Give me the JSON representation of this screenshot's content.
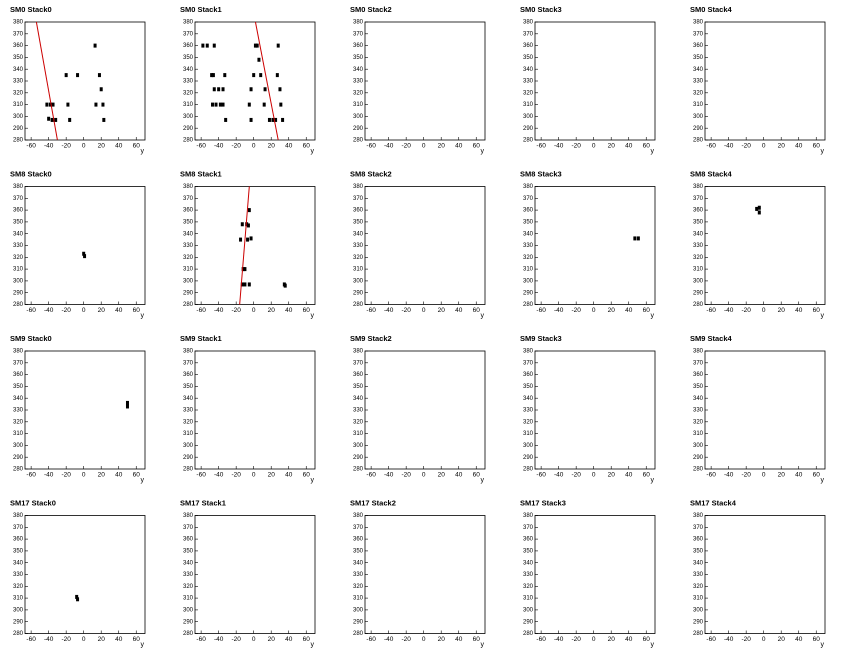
{
  "chart_data": [
    {
      "type": "scatter",
      "title": "SM0 Stack0",
      "xlabel": "y",
      "xlim": [
        -67,
        70
      ],
      "ylim": [
        280,
        380
      ],
      "xticks": [
        -60,
        -40,
        -20,
        0,
        20,
        40,
        60
      ],
      "yticks": [
        280,
        290,
        300,
        310,
        320,
        330,
        340,
        350,
        360,
        370,
        380
      ],
      "series": [
        {
          "color": "#000000",
          "x": [
            -42,
            -38,
            -35,
            -40,
            -36,
            -32,
            -20,
            -18,
            -16,
            -7,
            13,
            14,
            18,
            20,
            22,
            23
          ],
          "values": [
            310,
            310,
            310,
            298,
            297,
            297,
            335,
            310,
            297,
            335,
            360,
            310,
            335,
            323,
            310,
            297
          ]
        },
        {
          "type": "line",
          "color": "#cc0000",
          "x": [
            -54,
            -30
          ],
          "values": [
            380,
            280
          ]
        }
      ]
    },
    {
      "type": "scatter",
      "title": "SM0 Stack1",
      "xlabel": "y",
      "xlim": [
        -67,
        70
      ],
      "ylim": [
        280,
        380
      ],
      "xticks": [
        -60,
        -40,
        -20,
        0,
        20,
        40,
        60
      ],
      "yticks": [
        280,
        290,
        300,
        310,
        320,
        330,
        340,
        350,
        360,
        370,
        380
      ],
      "series": [
        {
          "color": "#000000",
          "x": [
            -58,
            -53,
            -45,
            -48,
            -46,
            -45,
            -40,
            -35,
            -47,
            -43,
            -38,
            -35,
            -33,
            -32,
            -5,
            -3,
            -3,
            0,
            2,
            4,
            6,
            8,
            13,
            12,
            18,
            22,
            25,
            28,
            27,
            30,
            31,
            33
          ],
          "values": [
            360,
            360,
            360,
            335,
            335,
            323,
            323,
            323,
            310,
            310,
            310,
            310,
            335,
            297,
            310,
            323,
            297,
            335,
            360,
            360,
            348,
            335,
            323,
            310,
            297,
            297,
            297,
            360,
            335,
            323,
            310,
            297
          ]
        },
        {
          "type": "line",
          "color": "#cc0000",
          "x": [
            2,
            28
          ],
          "values": [
            380,
            280
          ]
        }
      ]
    },
    {
      "type": "scatter",
      "title": "SM0 Stack2",
      "xlabel": "y",
      "xlim": [
        -67,
        70
      ],
      "ylim": [
        280,
        380
      ],
      "xticks": [
        -60,
        -40,
        -20,
        0,
        20,
        40,
        60
      ],
      "yticks": [
        280,
        290,
        300,
        310,
        320,
        330,
        340,
        350,
        360,
        370,
        380
      ]
    },
    {
      "type": "scatter",
      "title": "SM0 Stack3",
      "xlabel": "y",
      "xlim": [
        -67,
        70
      ],
      "ylim": [
        280,
        380
      ],
      "xticks": [
        -60,
        -40,
        -20,
        0,
        20,
        40,
        60
      ],
      "yticks": [
        280,
        290,
        300,
        310,
        320,
        330,
        340,
        350,
        360,
        370,
        380
      ]
    },
    {
      "type": "scatter",
      "title": "SM0 Stack4",
      "xlabel": "y",
      "xlim": [
        -67,
        70
      ],
      "ylim": [
        280,
        380
      ],
      "xticks": [
        -60,
        -40,
        -20,
        0,
        20,
        40,
        60
      ],
      "yticks": [
        280,
        290,
        300,
        310,
        320,
        330,
        340,
        350,
        360,
        370,
        380
      ]
    },
    {
      "type": "scatter",
      "title": "SM8 Stack0",
      "xlabel": "y",
      "xlim": [
        -67,
        70
      ],
      "ylim": [
        280,
        380
      ],
      "xticks": [
        -60,
        -40,
        -20,
        0,
        20,
        40,
        60
      ],
      "yticks": [
        280,
        290,
        300,
        310,
        320,
        330,
        340,
        350,
        360,
        370,
        380
      ],
      "series": [
        {
          "color": "#000000",
          "x": [
            0,
            1
          ],
          "values": [
            323,
            321
          ]
        }
      ]
    },
    {
      "type": "scatter",
      "title": "SM8 Stack1",
      "xlabel": "y",
      "xlim": [
        -67,
        70
      ],
      "ylim": [
        280,
        380
      ],
      "xticks": [
        -60,
        -40,
        -20,
        0,
        20,
        40,
        60
      ],
      "yticks": [
        280,
        290,
        300,
        310,
        320,
        330,
        340,
        350,
        360,
        370,
        380
      ],
      "series": [
        {
          "color": "#000000",
          "x": [
            -13,
            -15,
            -8,
            -6,
            -5,
            -7,
            -3,
            -10,
            -12,
            -13,
            -10,
            -5,
            35,
            36
          ],
          "values": [
            348,
            335,
            348,
            347,
            360,
            335,
            336,
            310,
            310,
            297,
            297,
            297,
            297,
            296
          ]
        },
        {
          "type": "line",
          "color": "#cc0000",
          "x": [
            -5,
            -16
          ],
          "values": [
            380,
            280
          ]
        }
      ]
    },
    {
      "type": "scatter",
      "title": "SM8 Stack2",
      "xlabel": "y",
      "xlim": [
        -67,
        70
      ],
      "ylim": [
        280,
        380
      ],
      "xticks": [
        -60,
        -40,
        -20,
        0,
        20,
        40,
        60
      ],
      "yticks": [
        280,
        290,
        300,
        310,
        320,
        330,
        340,
        350,
        360,
        370,
        380
      ]
    },
    {
      "type": "scatter",
      "title": "SM8 Stack3",
      "xlabel": "y",
      "xlim": [
        -67,
        70
      ],
      "ylim": [
        280,
        380
      ],
      "xticks": [
        -60,
        -40,
        -20,
        0,
        20,
        40,
        60
      ],
      "yticks": [
        280,
        290,
        300,
        310,
        320,
        330,
        340,
        350,
        360,
        370,
        380
      ],
      "series": [
        {
          "color": "#000000",
          "x": [
            47,
            51
          ],
          "values": [
            336,
            336
          ]
        }
      ]
    },
    {
      "type": "scatter",
      "title": "SM8 Stack4",
      "xlabel": "y",
      "xlim": [
        -67,
        70
      ],
      "ylim": [
        280,
        380
      ],
      "xticks": [
        -60,
        -40,
        -20,
        0,
        20,
        40,
        60
      ],
      "yticks": [
        280,
        290,
        300,
        310,
        320,
        330,
        340,
        350,
        360,
        370,
        380
      ],
      "series": [
        {
          "color": "#000000",
          "x": [
            -8,
            -5,
            -5
          ],
          "values": [
            361,
            362,
            358
          ]
        }
      ]
    },
    {
      "type": "scatter",
      "title": "SM9 Stack0",
      "xlabel": "y",
      "xlim": [
        -67,
        70
      ],
      "ylim": [
        280,
        380
      ],
      "xticks": [
        -60,
        -40,
        -20,
        0,
        20,
        40,
        60
      ],
      "yticks": [
        280,
        290,
        300,
        310,
        320,
        330,
        340,
        350,
        360,
        370,
        380
      ],
      "series": [
        {
          "color": "#000000",
          "x": [
            50,
            50
          ],
          "values": [
            336,
            333
          ]
        }
      ]
    },
    {
      "type": "scatter",
      "title": "SM9 Stack1",
      "xlabel": "y",
      "xlim": [
        -67,
        70
      ],
      "ylim": [
        280,
        380
      ],
      "xticks": [
        -60,
        -40,
        -20,
        0,
        20,
        40,
        60
      ],
      "yticks": [
        280,
        290,
        300,
        310,
        320,
        330,
        340,
        350,
        360,
        370,
        380
      ]
    },
    {
      "type": "scatter",
      "title": "SM9 Stack2",
      "xlabel": "y",
      "xlim": [
        -67,
        70
      ],
      "ylim": [
        280,
        380
      ],
      "xticks": [
        -60,
        -40,
        -20,
        0,
        20,
        40,
        60
      ],
      "yticks": [
        280,
        290,
        300,
        310,
        320,
        330,
        340,
        350,
        360,
        370,
        380
      ]
    },
    {
      "type": "scatter",
      "title": "SM9 Stack3",
      "xlabel": "y",
      "xlim": [
        -67,
        70
      ],
      "ylim": [
        280,
        380
      ],
      "xticks": [
        -60,
        -40,
        -20,
        0,
        20,
        40,
        60
      ],
      "yticks": [
        280,
        290,
        300,
        310,
        320,
        330,
        340,
        350,
        360,
        370,
        380
      ]
    },
    {
      "type": "scatter",
      "title": "SM9 Stack4",
      "xlabel": "y",
      "xlim": [
        -67,
        70
      ],
      "ylim": [
        280,
        380
      ],
      "xticks": [
        -60,
        -40,
        -20,
        0,
        20,
        40,
        60
      ],
      "yticks": [
        280,
        290,
        300,
        310,
        320,
        330,
        340,
        350,
        360,
        370,
        380
      ]
    },
    {
      "type": "scatter",
      "title": "SM17 Stack0",
      "xlabel": "y",
      "xlim": [
        -67,
        70
      ],
      "ylim": [
        280,
        380
      ],
      "xticks": [
        -60,
        -40,
        -20,
        0,
        20,
        40,
        60
      ],
      "yticks": [
        280,
        290,
        300,
        310,
        320,
        330,
        340,
        350,
        360,
        370,
        380
      ],
      "series": [
        {
          "color": "#000000",
          "x": [
            -8,
            -7
          ],
          "values": [
            311,
            309
          ]
        }
      ]
    },
    {
      "type": "scatter",
      "title": "SM17 Stack1",
      "xlabel": "y",
      "xlim": [
        -67,
        70
      ],
      "ylim": [
        280,
        380
      ],
      "xticks": [
        -60,
        -40,
        -20,
        0,
        20,
        40,
        60
      ],
      "yticks": [
        280,
        290,
        300,
        310,
        320,
        330,
        340,
        350,
        360,
        370,
        380
      ]
    },
    {
      "type": "scatter",
      "title": "SM17 Stack2",
      "xlabel": "y",
      "xlim": [
        -67,
        70
      ],
      "ylim": [
        280,
        380
      ],
      "xticks": [
        -60,
        -40,
        -20,
        0,
        20,
        40,
        60
      ],
      "yticks": [
        280,
        290,
        300,
        310,
        320,
        330,
        340,
        350,
        360,
        370,
        380
      ]
    },
    {
      "type": "scatter",
      "title": "SM17 Stack3",
      "xlabel": "y",
      "xlim": [
        -67,
        70
      ],
      "ylim": [
        280,
        380
      ],
      "xticks": [
        -60,
        -40,
        -20,
        0,
        20,
        40,
        60
      ],
      "yticks": [
        280,
        290,
        300,
        310,
        320,
        330,
        340,
        350,
        360,
        370,
        380
      ]
    },
    {
      "type": "scatter",
      "title": "SM17 Stack4",
      "xlabel": "y",
      "xlim": [
        -67,
        70
      ],
      "ylim": [
        280,
        380
      ],
      "xticks": [
        -60,
        -40,
        -20,
        0,
        20,
        40,
        60
      ],
      "yticks": [
        280,
        290,
        300,
        310,
        320,
        330,
        340,
        350,
        360,
        370,
        380
      ]
    }
  ]
}
